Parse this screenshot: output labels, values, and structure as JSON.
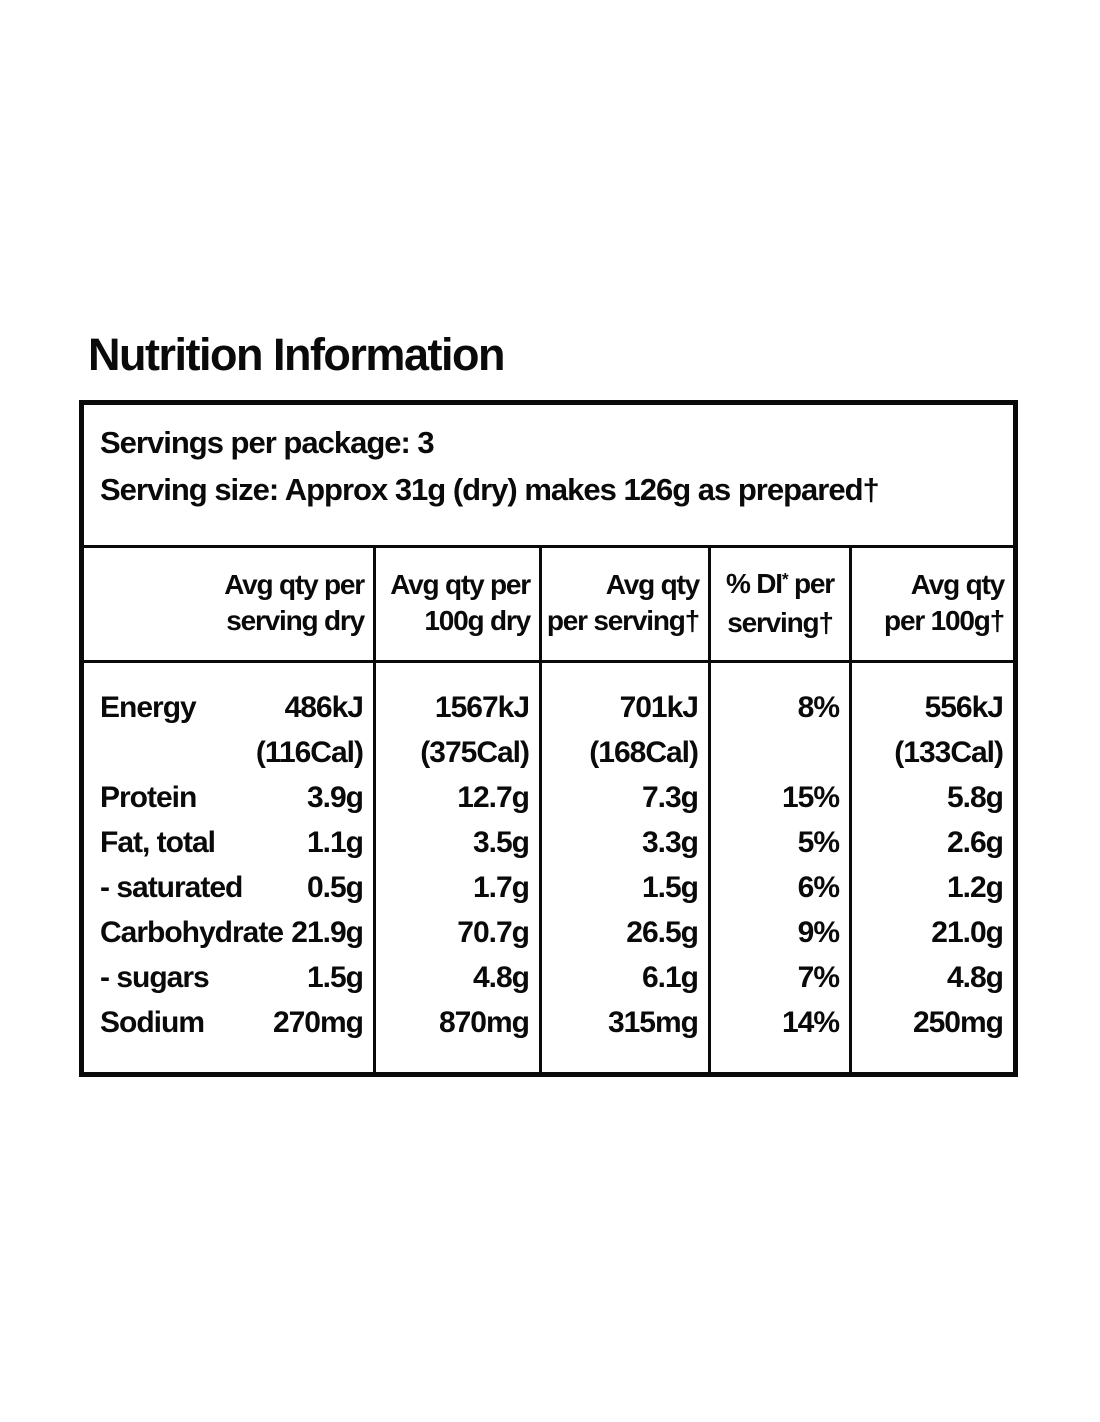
{
  "title": "Nutrition Information",
  "colors": {
    "text": "#0a0a0a",
    "border": "#0a0a0a",
    "background": "#ffffff"
  },
  "panel": {
    "servings_per_package": "Servings per package: 3",
    "serving_size": "Serving size: Approx 31g (dry) makes 126g as prepared†"
  },
  "table": {
    "header": {
      "serving_dry": {
        "line1": "Avg qty per",
        "line2": "serving dry"
      },
      "per_100g_dry": {
        "line1": "Avg qty per",
        "line2": "100g dry"
      },
      "per_serving": {
        "line1": "Avg qty",
        "line2": "per serving†"
      },
      "di": {
        "prefix": "% DI",
        "sup": "*",
        "suffix": "per",
        "line2": "serving†"
      },
      "per_100g": {
        "line1": "Avg qty",
        "line2": "per 100g†"
      }
    },
    "rows": [
      {
        "nutrient": "Energy",
        "serving_dry": "486kJ",
        "per_100g_dry": "1567kJ",
        "per_serving": "701kJ",
        "di": "8%",
        "per_100g": "556kJ"
      },
      {
        "nutrient": "",
        "serving_dry": "(116Cal)",
        "per_100g_dry": "(375Cal)",
        "per_serving": "(168Cal)",
        "di": "",
        "per_100g": "(133Cal)"
      },
      {
        "nutrient": "Protein",
        "serving_dry": "3.9g",
        "per_100g_dry": "12.7g",
        "per_serving": "7.3g",
        "di": "15%",
        "per_100g": "5.8g"
      },
      {
        "nutrient": "Fat, total",
        "serving_dry": "1.1g",
        "per_100g_dry": "3.5g",
        "per_serving": "3.3g",
        "di": "5%",
        "per_100g": "2.6g"
      },
      {
        "nutrient": "- saturated",
        "serving_dry": "0.5g",
        "per_100g_dry": "1.7g",
        "per_serving": "1.5g",
        "di": "6%",
        "per_100g": "1.2g"
      },
      {
        "nutrient": "Carbohydrate",
        "serving_dry": "21.9g",
        "per_100g_dry": "70.7g",
        "per_serving": "26.5g",
        "di": "9%",
        "per_100g": "21.0g"
      },
      {
        "nutrient": "- sugars",
        "serving_dry": "1.5g",
        "per_100g_dry": "4.8g",
        "per_serving": "6.1g",
        "di": "7%",
        "per_100g": "4.8g"
      },
      {
        "nutrient": "Sodium",
        "serving_dry": "270mg",
        "per_100g_dry": "870mg",
        "per_serving": "315mg",
        "di": "14%",
        "per_100g": "250mg"
      }
    ]
  }
}
